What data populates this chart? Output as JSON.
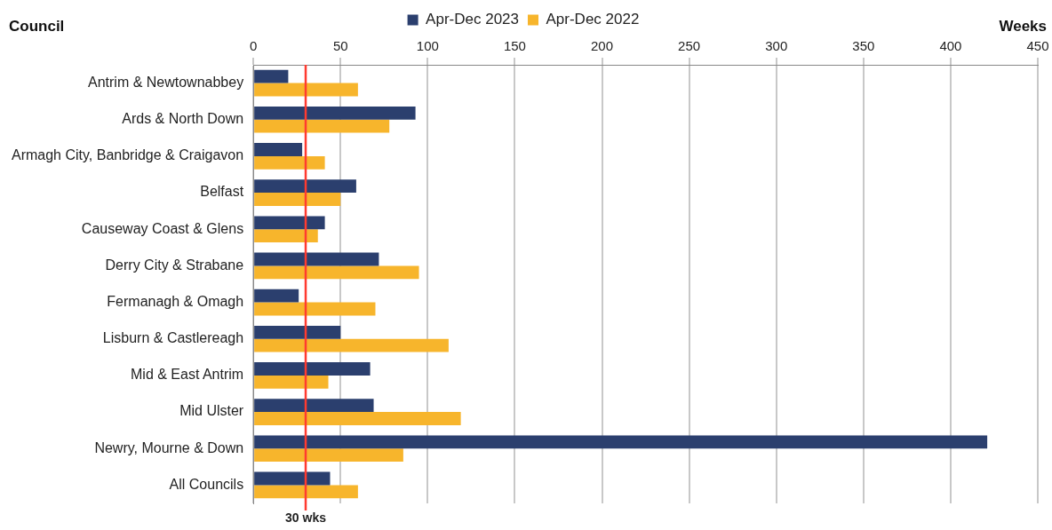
{
  "chart_data": {
    "type": "bar",
    "orientation": "horizontal",
    "ylabel": "Council",
    "xlabel": "Weeks",
    "categories": [
      "Antrim & Newtownabbey",
      "Ards & North Down",
      "Armagh City, Banbridge & Craigavon",
      "Belfast",
      "Causeway Coast & Glens",
      "Derry City & Strabane",
      "Fermanagh & Omagh",
      "Lisburn & Castlereagh",
      "Mid & East Antrim",
      "Mid Ulster",
      "Newry, Mourne & Down",
      "All Councils"
    ],
    "series": [
      {
        "name": "Apr-Dec 2023",
        "color": "#2b3f6e",
        "values": [
          20,
          93,
          28,
          59,
          41,
          72,
          26,
          50,
          67,
          69,
          421,
          44
        ]
      },
      {
        "name": "Apr-Dec 2022",
        "color": "#f7b52c",
        "values": [
          60,
          78,
          41,
          50,
          37,
          95,
          70,
          112,
          43,
          119,
          86,
          60
        ]
      }
    ],
    "xlim": [
      0,
      450
    ],
    "xticks": [
      0,
      50,
      100,
      150,
      200,
      250,
      300,
      350,
      400,
      450
    ],
    "grid": "x",
    "legend": "top",
    "ref_lines": [
      {
        "axis": "x",
        "value": 30,
        "label": "30 wks",
        "color": "#ff3b30"
      }
    ]
  }
}
